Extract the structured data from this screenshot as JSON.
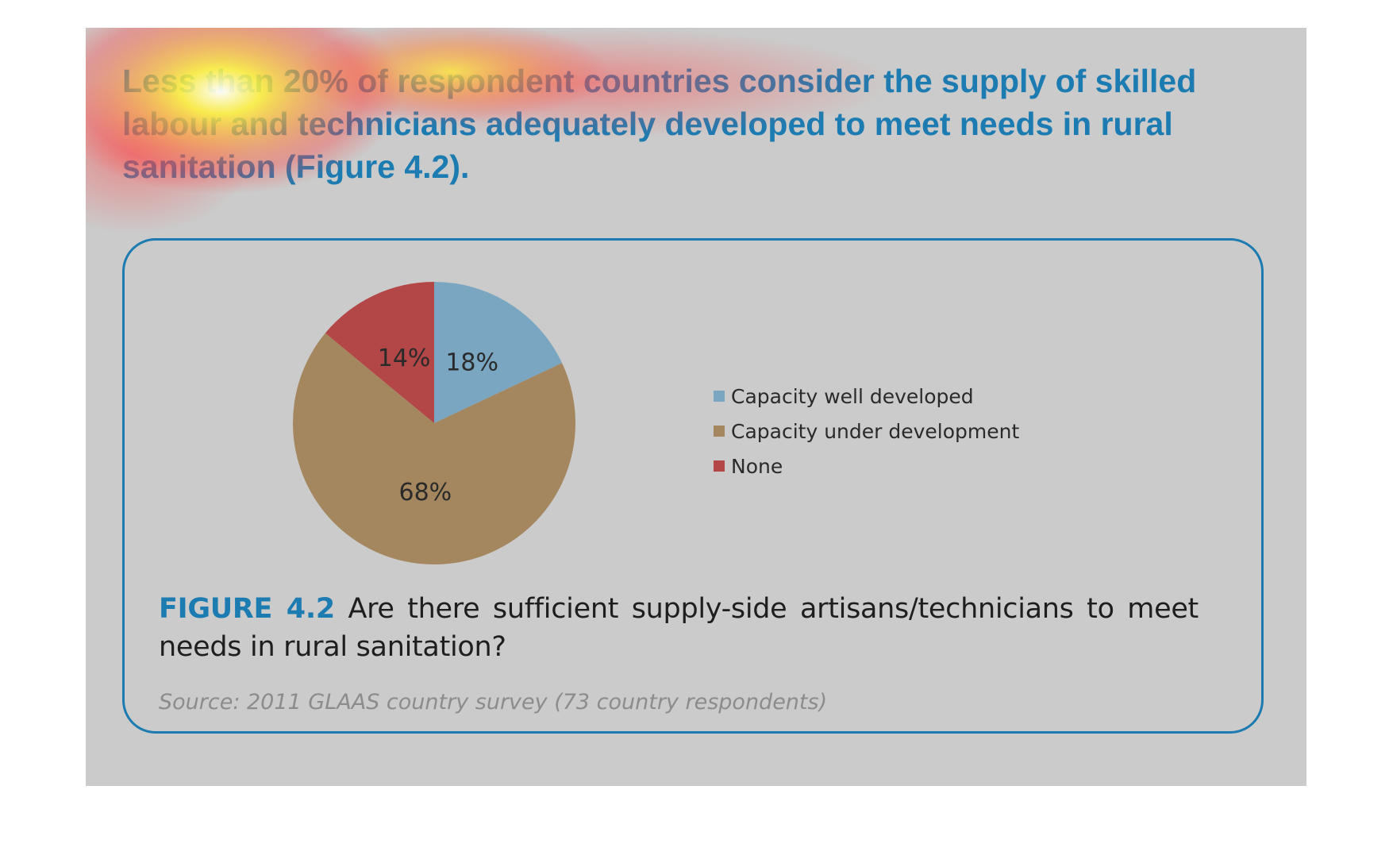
{
  "headline": "Less than 20% of respondent countries consider the supply of skilled labour and technicians adequately developed to meet needs in rural sanitation (Figure 4.2).",
  "figure": {
    "caption_tag": "FIGURE 4.2",
    "caption_text": " Are there sufficient supply-side artisans/technicians to meet needs in rural sanitation?",
    "source": "Source: 2011 GLAAS country survey (73 country respondents)"
  },
  "colors": {
    "headline_text": "#1c7bb1",
    "panel_background": "#cbcbcb",
    "frame": "#1c7bb1"
  },
  "chart_data": {
    "type": "pie",
    "categories": [
      "Capacity well developed",
      "Capacity under development",
      "None"
    ],
    "values": [
      18,
      68,
      14
    ],
    "data_labels": [
      "18%",
      "68%",
      "14%"
    ],
    "colors": [
      "#7aa6c2",
      "#a5875f",
      "#b34646"
    ],
    "start_angle": "12 o'clock",
    "direction": "clockwise",
    "legend_position": "right"
  }
}
